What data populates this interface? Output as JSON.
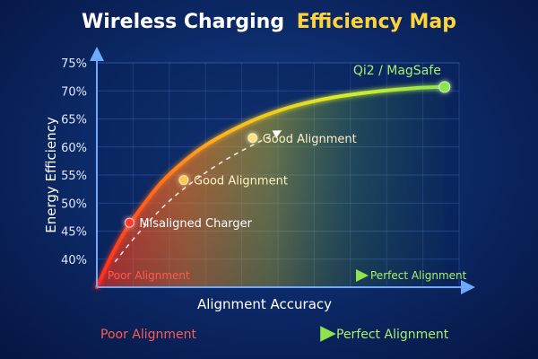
{
  "chart_data": {
    "type": "line",
    "title_part1": "Wireless Charging",
    "title_part2": "Efficiency Map",
    "xlabel": "Alignment Accuracy",
    "ylabel": "Energy Efficiency",
    "y_ticks": [
      "75%",
      "70%",
      "65%",
      "60%",
      "55%",
      "50%",
      "45%",
      "40%"
    ],
    "ylim": [
      35,
      75
    ],
    "xlim": [
      0,
      100
    ],
    "grid": true,
    "series": [
      {
        "x": [
          0,
          4,
          8,
          13,
          18,
          24,
          30,
          38,
          46,
          55,
          65,
          76,
          88,
          96
        ],
        "values": [
          35,
          40.6,
          45.2,
          49.8,
          53.8,
          57.4,
          60.3,
          63.2,
          65.5,
          67.4,
          68.8,
          69.8,
          70.5,
          70.7
        ]
      }
    ],
    "points": [
      {
        "label": "Misaligned Charger",
        "x": 9,
        "y": 46.5,
        "color": "#ff3b2f"
      },
      {
        "label": "Good Alignment",
        "x": 24,
        "y": 54.1,
        "color": "#ffc94a"
      },
      {
        "label": "Good Alignment",
        "x": 43,
        "y": 61.6,
        "color": "#ffe27a"
      },
      {
        "label": "Qi2 / MagSafe",
        "x": 96,
        "y": 70.7,
        "color": "#8fe34b"
      }
    ],
    "inner_legend": {
      "left": "Poor Alignment",
      "right": "Perfect Alignment"
    },
    "bottom_legend": {
      "left": "Poor Alignment",
      "right": "Perfect Alignment"
    }
  }
}
